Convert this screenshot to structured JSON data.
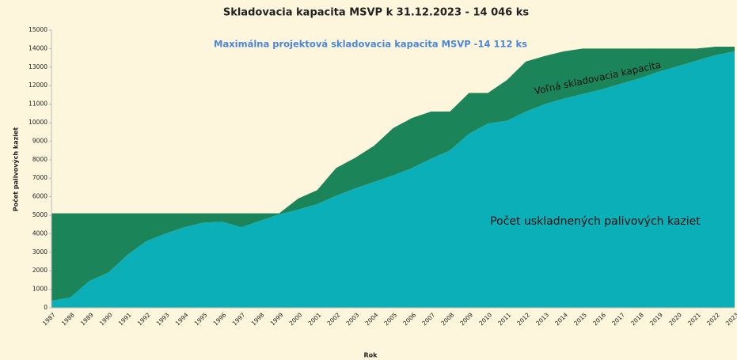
{
  "chart_data": {
    "type": "stacked_area",
    "title": "Skladovacia kapacita MSVP k 31.12.2023 - 14 046 ks",
    "x_label": "Rok",
    "y_label": "Počet palivových kaziet",
    "annotations": [
      "Maximálna projektová skladovacia kapacita MSVP -14 112 ks",
      "Voľná skladovacia kapacita",
      "Počet uskladnených palivových kaziet"
    ],
    "categories": [
      "1987",
      "1988",
      "1989",
      "1990",
      "1991",
      "1992",
      "1993",
      "1994",
      "1995",
      "1996",
      "1997",
      "1998",
      "1999",
      "2000",
      "2001",
      "2002",
      "2003",
      "2004",
      "2005",
      "2006",
      "2007",
      "2008",
      "2009",
      "2010",
      "2011",
      "2012",
      "2013",
      "2014",
      "2015",
      "2016",
      "2017",
      "2018",
      "2019",
      "2020",
      "2021",
      "2022",
      "2023"
    ],
    "series": [
      {
        "name": "Počet uskladnených palivových kaziet",
        "color": "#0aafb8",
        "values": [
          380,
          560,
          1450,
          1900,
          2850,
          3600,
          4000,
          4350,
          4600,
          4650,
          4350,
          4700,
          5050,
          5300,
          5600,
          6050,
          6450,
          6800,
          7150,
          7550,
          8050,
          8500,
          9400,
          9950,
          10100,
          10600,
          11000,
          11300,
          11550,
          11800,
          12100,
          12400,
          12750,
          13050,
          13350,
          13650,
          13850
        ]
      },
      {
        "name": "Voľná skladovacia kapacita",
        "color": "#1b8559",
        "values": [
          4720,
          4540,
          3650,
          3200,
          2250,
          1500,
          1100,
          750,
          500,
          450,
          750,
          400,
          50,
          600,
          750,
          1500,
          1650,
          1950,
          2550,
          2700,
          2550,
          2100,
          2200,
          1650,
          2200,
          2700,
          2600,
          2550,
          2450,
          2200,
          1900,
          1600,
          1250,
          950,
          650,
          450,
          250
        ]
      }
    ],
    "ylim": [
      0,
      15000
    ],
    "yticks": [
      0,
      1000,
      2000,
      3000,
      4000,
      5000,
      6000,
      7000,
      8000,
      9000,
      10000,
      11000,
      12000,
      13000,
      14000,
      15000
    ]
  }
}
